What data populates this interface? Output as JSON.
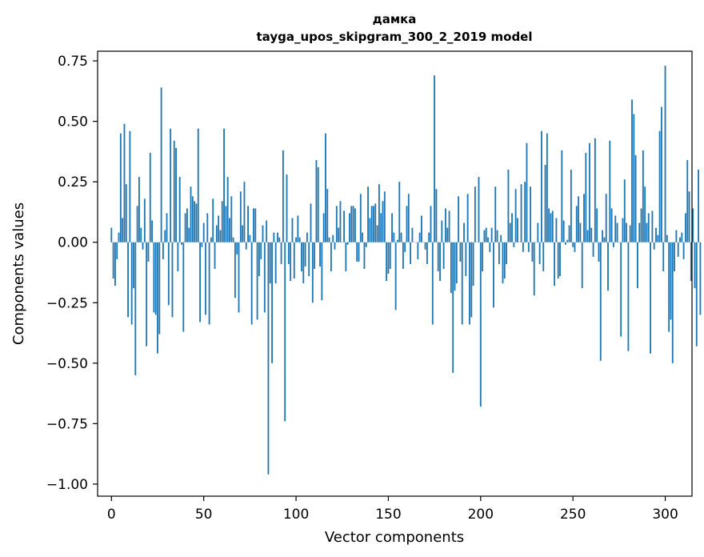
{
  "chart_data": {
    "type": "bar",
    "title": "дамка",
    "subtitle": "tayga_upos_skipgram_300_2_2019 model",
    "xlabel": "Vector components",
    "ylabel": "Components values",
    "xlim": [
      -7.5,
      314.5
    ],
    "ylim": [
      -1.05,
      0.79
    ],
    "xticks": [
      0,
      50,
      100,
      150,
      200,
      250,
      300
    ],
    "yticks": [
      -1.0,
      -0.75,
      -0.5,
      -0.25,
      0.0,
      0.25,
      0.5,
      0.75
    ],
    "xtick_labels": [
      "0",
      "50",
      "100",
      "150",
      "200",
      "250",
      "300"
    ],
    "ytick_labels": [
      "−1.00",
      "−0.75",
      "−0.50",
      "−0.25",
      "0.00",
      "0.25",
      "0.50",
      "0.75"
    ],
    "values": [
      0.06,
      -0.15,
      -0.18,
      -0.07,
      0.04,
      0.45,
      0.1,
      0.49,
      0.24,
      -0.31,
      0.46,
      -0.34,
      -0.19,
      -0.55,
      0.15,
      0.27,
      0.06,
      -0.03,
      0.18,
      -0.43,
      -0.08,
      0.37,
      0.09,
      -0.29,
      -0.3,
      -0.46,
      -0.38,
      0.64,
      -0.07,
      0.05,
      0.12,
      -0.26,
      0.47,
      -0.31,
      0.42,
      0.39,
      -0.12,
      0.27,
      -0.01,
      -0.37,
      0.12,
      0.14,
      0.06,
      0.23,
      0.19,
      0.17,
      0.16,
      0.47,
      -0.33,
      -0.02,
      0.08,
      -0.3,
      0.12,
      -0.34,
      0.02,
      0.18,
      -0.11,
      0.07,
      0.11,
      0.05,
      0.17,
      0.47,
      0.15,
      0.27,
      0.1,
      0.19,
      0.02,
      -0.23,
      -0.05,
      -0.29,
      0.21,
      0.07,
      0.25,
      -0.03,
      0.15,
      0.03,
      -0.34,
      0.14,
      0.14,
      -0.32,
      -0.14,
      -0.07,
      0.07,
      -0.29,
      0.09,
      -0.96,
      -0.17,
      -0.5,
      0.04,
      -0.17,
      0.04,
      0.02,
      -0.09,
      0.38,
      -0.74,
      0.28,
      -0.09,
      -0.16,
      0.1,
      -0.15,
      0.02,
      0.11,
      0.02,
      -0.12,
      -0.17,
      -0.1,
      0.04,
      -0.14,
      0.16,
      -0.25,
      -0.11,
      0.34,
      0.31,
      -0.1,
      -0.24,
      0.12,
      0.45,
      0.22,
      0.02,
      -0.12,
      0.03,
      -0.03,
      0.15,
      0.06,
      0.17,
      0.0,
      0.13,
      -0.12,
      -0.01,
      0.12,
      0.15,
      0.15,
      0.14,
      -0.08,
      -0.08,
      0.2,
      0.04,
      -0.11,
      -0.02,
      0.23,
      0.1,
      0.15,
      0.15,
      0.16,
      0.07,
      0.24,
      0.12,
      0.17,
      0.21,
      -0.16,
      -0.13,
      -0.11,
      0.12,
      0.04,
      -0.28,
      0.01,
      0.25,
      0.04,
      -0.11,
      -0.04,
      0.15,
      0.2,
      -0.09,
      0.06,
      0.0,
      0.0,
      -0.07,
      0.04,
      0.11,
      0.0,
      -0.03,
      -0.09,
      0.04,
      0.15,
      -0.34,
      0.69,
      0.22,
      -0.12,
      -0.16,
      0.09,
      -0.11,
      0.14,
      0.06,
      0.13,
      -0.21,
      -0.54,
      -0.2,
      -0.17,
      0.19,
      -0.08,
      -0.34,
      0.08,
      -0.14,
      0.2,
      -0.34,
      -0.31,
      -0.18,
      0.23,
      0.0,
      0.27,
      -0.68,
      -0.12,
      0.05,
      0.06,
      0.02,
      -0.04,
      0.06,
      -0.27,
      0.23,
      0.05,
      -0.09,
      0.03,
      -0.17,
      -0.15,
      -0.09,
      0.3,
      0.08,
      0.12,
      -0.02,
      0.22,
      0.1,
      0.0,
      0.24,
      -0.04,
      0.25,
      0.41,
      -0.04,
      0.23,
      -0.08,
      -0.22,
      0.0,
      0.08,
      -0.09,
      0.46,
      -0.12,
      0.32,
      0.45,
      0.14,
      0.12,
      0.13,
      -0.18,
      0.1,
      -0.15,
      -0.14,
      0.38,
      0.09,
      -0.01,
      0.01,
      0.07,
      0.3,
      -0.02,
      -0.04,
      0.15,
      0.19,
      0.08,
      -0.19,
      0.2,
      0.37,
      0.05,
      0.41,
      0.06,
      -0.06,
      0.43,
      0.14,
      -0.08,
      -0.49,
      0.05,
      0.02,
      0.2,
      -0.2,
      0.42,
      0.14,
      -0.02,
      0.11,
      0.08,
      0.0,
      -0.39,
      0.1,
      0.26,
      0.08,
      -0.45,
      0.07,
      0.59,
      0.53,
      0.36,
      -0.19,
      0.08,
      0.14,
      0.38,
      0.23,
      0.08,
      0.12,
      -0.46,
      0.13,
      -0.03,
      0.06,
      0.03,
      0.46,
      0.56,
      -0.12,
      0.73,
      0.03,
      -0.37,
      -0.32,
      -0.5,
      -0.12,
      0.05,
      -0.06,
      0.02,
      0.04,
      -0.07,
      0.12,
      0.34,
      0.21,
      -0.16,
      0.14,
      -0.19,
      -0.43,
      0.3,
      -0.3
    ],
    "grid": false,
    "color": "#1f77b4"
  }
}
